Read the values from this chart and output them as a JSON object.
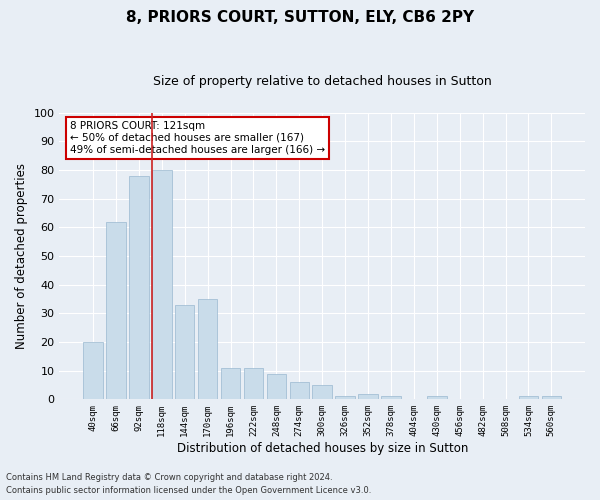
{
  "title1": "8, PRIORS COURT, SUTTON, ELY, CB6 2PY",
  "title2": "Size of property relative to detached houses in Sutton",
  "xlabel": "Distribution of detached houses by size in Sutton",
  "ylabel": "Number of detached properties",
  "annotation_line1": "8 PRIORS COURT: 121sqm",
  "annotation_line2": "← 50% of detached houses are smaller (167)",
  "annotation_line3": "49% of semi-detached houses are larger (166) →",
  "footer1": "Contains HM Land Registry data © Crown copyright and database right 2024.",
  "footer2": "Contains public sector information licensed under the Open Government Licence v3.0.",
  "categories": [
    "40sqm",
    "66sqm",
    "92sqm",
    "118sqm",
    "144sqm",
    "170sqm",
    "196sqm",
    "222sqm",
    "248sqm",
    "274sqm",
    "300sqm",
    "326sqm",
    "352sqm",
    "378sqm",
    "404sqm",
    "430sqm",
    "456sqm",
    "482sqm",
    "508sqm",
    "534sqm",
    "560sqm"
  ],
  "values": [
    20,
    62,
    78,
    80,
    33,
    35,
    11,
    11,
    9,
    6,
    5,
    1,
    2,
    1,
    0,
    1,
    0,
    0,
    0,
    1,
    1
  ],
  "bar_color": "#c9dcea",
  "bar_edge_color": "#9ab8d0",
  "highlight_index": 3,
  "highlight_line_color": "#cc2222",
  "annotation_box_edge_color": "#cc0000",
  "annotation_box_face_color": "#ffffff",
  "ylim": [
    0,
    100
  ],
  "yticks": [
    0,
    10,
    20,
    30,
    40,
    50,
    60,
    70,
    80,
    90,
    100
  ],
  "bg_color": "#e8eef5",
  "plot_bg_color": "#e8eef5",
  "grid_color": "#ffffff",
  "title1_fontsize": 11,
  "title2_fontsize": 9,
  "xlabel_fontsize": 8.5,
  "ylabel_fontsize": 8.5
}
